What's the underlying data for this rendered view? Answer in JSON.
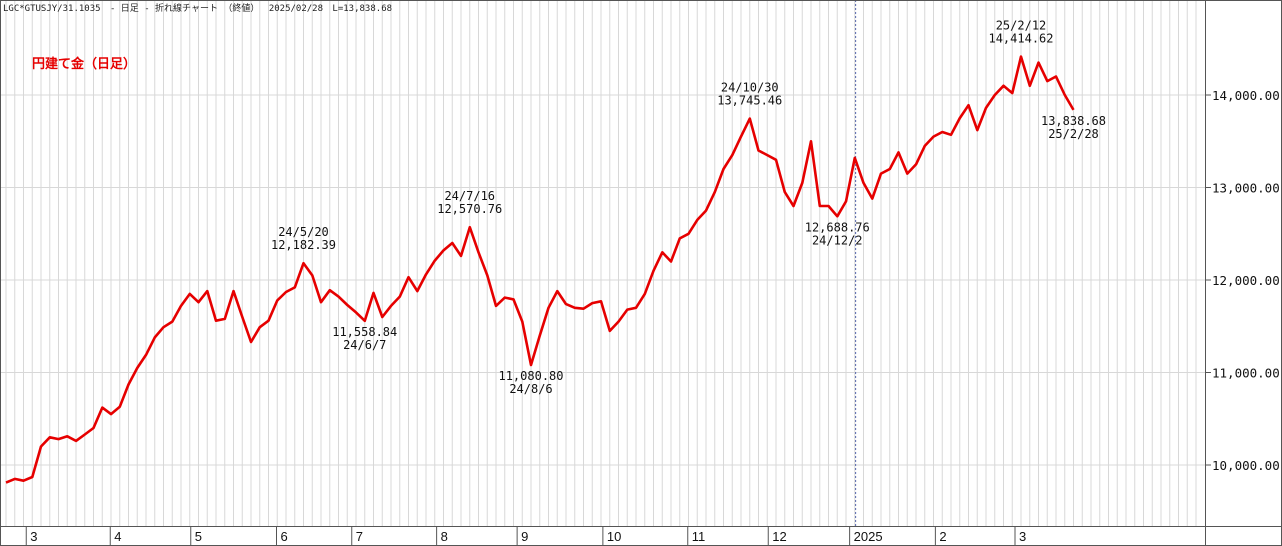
{
  "header": {
    "code": "LGC*GTUSJY/31.1035",
    "title": "- 日足 - 折れ線チャート （終値）",
    "date": "2025/02/28",
    "last": "L=13,838.68"
  },
  "legend_label": "円建て金（日足）",
  "colors": {
    "line": "#e60000",
    "legend": "#e60000",
    "grid": "#d8d8d8",
    "frame": "#555555",
    "divider": "#5566aa"
  },
  "chart_data": {
    "type": "line",
    "title": "",
    "xlabel": "",
    "ylabel": "",
    "ylim": [
      9500,
      14800
    ],
    "grid": true,
    "y_ticks": [
      {
        "value": 10000,
        "label": "10,000.00"
      },
      {
        "value": 11000,
        "label": "11,000.00"
      },
      {
        "value": 12000,
        "label": "12,000.00"
      },
      {
        "value": 13000,
        "label": "13,000.00"
      },
      {
        "value": 14000,
        "label": "14,000.00"
      }
    ],
    "x_ticks": [
      {
        "label": "3",
        "week": 3
      },
      {
        "label": "4",
        "week": 12.6
      },
      {
        "label": "5",
        "week": 21.8
      },
      {
        "label": "6",
        "week": 31.6
      },
      {
        "label": "7",
        "week": 40.2
      },
      {
        "label": "8",
        "week": 49.9
      },
      {
        "label": "9",
        "week": 59.1
      },
      {
        "label": "10",
        "week": 68.9
      },
      {
        "label": "11",
        "week": 78.6
      },
      {
        "label": "12",
        "week": 87.8
      },
      {
        "label": "2025",
        "week": 97.1
      },
      {
        "label": "2",
        "week": 106.9
      },
      {
        "label": "3",
        "week": 116
      }
    ],
    "year_divider_week": 97.1,
    "series": [
      {
        "name": "",
        "points": [
          [
            0,
            9810
          ],
          [
            1,
            9850
          ],
          [
            2,
            9830
          ],
          [
            3,
            9870
          ],
          [
            4,
            10200
          ],
          [
            5,
            10300
          ],
          [
            6,
            10280
          ],
          [
            7,
            10310
          ],
          [
            8,
            10260
          ],
          [
            9,
            10330
          ],
          [
            10,
            10400
          ],
          [
            11,
            10620
          ],
          [
            12,
            10550
          ],
          [
            13,
            10630
          ],
          [
            14,
            10870
          ],
          [
            15,
            11050
          ],
          [
            16,
            11190
          ],
          [
            17,
            11380
          ],
          [
            18,
            11490
          ],
          [
            19,
            11550
          ],
          [
            20,
            11720
          ],
          [
            21,
            11850
          ],
          [
            22,
            11760
          ],
          [
            23,
            11880
          ],
          [
            24,
            11560
          ],
          [
            25,
            11580
          ],
          [
            26,
            11880
          ],
          [
            27,
            11600
          ],
          [
            28,
            11330
          ],
          [
            29,
            11490
          ],
          [
            30,
            11560
          ],
          [
            31,
            11780
          ],
          [
            32,
            11870
          ],
          [
            33,
            11920
          ],
          [
            34,
            12182
          ],
          [
            35,
            12050
          ],
          [
            36,
            11760
          ],
          [
            37,
            11890
          ],
          [
            38,
            11820
          ],
          [
            39,
            11730
          ],
          [
            40,
            11650
          ],
          [
            41,
            11559
          ],
          [
            42,
            11860
          ],
          [
            43,
            11600
          ],
          [
            44,
            11720
          ],
          [
            45,
            11820
          ],
          [
            46,
            12030
          ],
          [
            47,
            11880
          ],
          [
            48,
            12060
          ],
          [
            49,
            12210
          ],
          [
            50,
            12320
          ],
          [
            51,
            12400
          ],
          [
            52,
            12260
          ],
          [
            53,
            12571
          ],
          [
            54,
            12300
          ],
          [
            55,
            12050
          ],
          [
            56,
            11720
          ],
          [
            57,
            11810
          ],
          [
            58,
            11790
          ],
          [
            59,
            11550
          ],
          [
            60,
            11081
          ],
          [
            61,
            11400
          ],
          [
            62,
            11700
          ],
          [
            63,
            11880
          ],
          [
            64,
            11740
          ],
          [
            65,
            11700
          ],
          [
            66,
            11690
          ],
          [
            67,
            11750
          ],
          [
            68,
            11770
          ],
          [
            69,
            11450
          ],
          [
            70,
            11550
          ],
          [
            71,
            11680
          ],
          [
            72,
            11700
          ],
          [
            73,
            11850
          ],
          [
            74,
            12100
          ],
          [
            75,
            12300
          ],
          [
            76,
            12200
          ],
          [
            77,
            12450
          ],
          [
            78,
            12500
          ],
          [
            79,
            12650
          ],
          [
            80,
            12750
          ],
          [
            81,
            12950
          ],
          [
            82,
            13200
          ],
          [
            83,
            13350
          ],
          [
            84,
            13550
          ],
          [
            85,
            13745
          ],
          [
            86,
            13400
          ],
          [
            87,
            13350
          ],
          [
            88,
            13300
          ],
          [
            89,
            12950
          ],
          [
            90,
            12800
          ],
          [
            91,
            13050
          ],
          [
            92,
            13500
          ],
          [
            93,
            12800
          ],
          [
            94,
            12800
          ],
          [
            95,
            12689
          ],
          [
            96,
            12850
          ],
          [
            97,
            13320
          ],
          [
            98,
            13050
          ],
          [
            99,
            12880
          ],
          [
            100,
            13150
          ],
          [
            101,
            13200
          ],
          [
            102,
            13380
          ],
          [
            103,
            13150
          ],
          [
            104,
            13250
          ],
          [
            105,
            13450
          ],
          [
            106,
            13550
          ],
          [
            107,
            13600
          ],
          [
            108,
            13570
          ],
          [
            109,
            13750
          ],
          [
            110,
            13890
          ],
          [
            111,
            13620
          ],
          [
            112,
            13860
          ],
          [
            113,
            14000
          ],
          [
            114,
            14100
          ],
          [
            115,
            14020
          ],
          [
            116,
            14415
          ],
          [
            117,
            14100
          ],
          [
            118,
            14350
          ],
          [
            119,
            14150
          ],
          [
            120,
            14200
          ],
          [
            121,
            14000
          ],
          [
            122,
            13839
          ]
        ]
      }
    ],
    "annotations": [
      {
        "week": 34,
        "lines": [
          "24/5/20",
          "12,182.39"
        ],
        "position": "above"
      },
      {
        "week": 41,
        "lines": [
          "11,558.84",
          "24/6/7"
        ],
        "position": "below"
      },
      {
        "week": 53,
        "lines": [
          "24/7/16",
          "12,570.76"
        ],
        "position": "above"
      },
      {
        "week": 60,
        "lines": [
          "11,080.80",
          "24/8/6"
        ],
        "position": "below"
      },
      {
        "week": 85,
        "lines": [
          "24/10/30",
          "13,745.46"
        ],
        "position": "above"
      },
      {
        "week": 95,
        "lines": [
          "12,688.76",
          "24/12/2"
        ],
        "position": "below"
      },
      {
        "week": 116,
        "lines": [
          "25/2/12",
          "14,414.62"
        ],
        "position": "above"
      },
      {
        "week": 122,
        "lines": [
          "13,838.68",
          "25/2/28"
        ],
        "position": "below"
      }
    ]
  }
}
